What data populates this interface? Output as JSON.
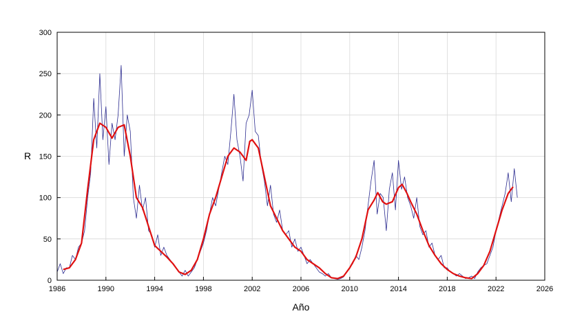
{
  "chart_data": {
    "type": "line",
    "xlabel": "Año",
    "ylabel": "R",
    "xlim": [
      1986,
      2026
    ],
    "ylim": [
      0,
      300
    ],
    "xticks": [
      1986,
      1990,
      1994,
      1998,
      2002,
      2006,
      2010,
      2014,
      2018,
      2022,
      2026
    ],
    "yticks": [
      0,
      50,
      100,
      150,
      200,
      250,
      300
    ],
    "grid": true,
    "series": [
      {
        "color": "#2b2b8f",
        "width": 0.8,
        "x": [
          1986,
          1986.25,
          1986.5,
          1986.75,
          1987,
          1987.25,
          1987.5,
          1987.75,
          1988,
          1988.25,
          1988.5,
          1988.75,
          1989,
          1989.25,
          1989.5,
          1989.75,
          1990,
          1990.25,
          1990.5,
          1990.75,
          1991,
          1991.25,
          1991.5,
          1991.75,
          1992,
          1992.25,
          1992.5,
          1992.75,
          1993,
          1993.25,
          1993.5,
          1993.75,
          1994,
          1994.25,
          1994.5,
          1994.75,
          1995,
          1995.25,
          1995.5,
          1995.75,
          1996,
          1996.25,
          1996.5,
          1996.75,
          1997,
          1997.25,
          1997.5,
          1997.75,
          1998,
          1998.25,
          1998.5,
          1998.75,
          1999,
          1999.25,
          1999.5,
          1999.75,
          2000,
          2000.25,
          2000.5,
          2000.75,
          2001,
          2001.25,
          2001.5,
          2001.75,
          2002,
          2002.25,
          2002.5,
          2002.75,
          2003,
          2003.25,
          2003.5,
          2003.75,
          2004,
          2004.25,
          2004.5,
          2004.75,
          2005,
          2005.25,
          2005.5,
          2005.75,
          2006,
          2006.25,
          2006.5,
          2006.75,
          2007,
          2007.25,
          2007.5,
          2007.75,
          2008,
          2008.25,
          2008.5,
          2008.75,
          2009,
          2009.25,
          2009.5,
          2009.75,
          2010,
          2010.25,
          2010.5,
          2010.75,
          2011,
          2011.25,
          2011.5,
          2011.75,
          2012,
          2012.25,
          2012.5,
          2012.75,
          2013,
          2013.25,
          2013.5,
          2013.75,
          2014,
          2014.25,
          2014.5,
          2014.75,
          2015,
          2015.25,
          2015.5,
          2015.75,
          2016,
          2016.25,
          2016.5,
          2016.75,
          2017,
          2017.25,
          2017.5,
          2017.75,
          2018,
          2018.25,
          2018.5,
          2018.75,
          2019,
          2019.25,
          2019.5,
          2019.75,
          2020,
          2020.25,
          2020.5,
          2020.75,
          2021,
          2021.25,
          2021.5,
          2021.75,
          2022,
          2022.25,
          2022.5,
          2022.75,
          2023,
          2023.25,
          2023.5,
          2023.75
        ],
        "values": [
          10,
          20,
          8,
          15,
          15,
          30,
          25,
          40,
          45,
          60,
          100,
          130,
          220,
          160,
          250,
          170,
          210,
          140,
          190,
          170,
          200,
          260,
          150,
          200,
          180,
          100,
          75,
          115,
          85,
          100,
          60,
          55,
          40,
          55,
          30,
          40,
          30,
          25,
          20,
          15,
          10,
          5,
          12,
          5,
          10,
          15,
          25,
          35,
          45,
          60,
          80,
          100,
          90,
          110,
          130,
          150,
          140,
          180,
          225,
          170,
          150,
          120,
          190,
          200,
          230,
          180,
          175,
          140,
          120,
          90,
          115,
          80,
          70,
          85,
          60,
          55,
          60,
          40,
          50,
          35,
          40,
          30,
          20,
          25,
          20,
          15,
          10,
          8,
          5,
          8,
          3,
          2,
          1,
          2,
          4,
          10,
          15,
          20,
          30,
          25,
          40,
          60,
          90,
          120,
          145,
          80,
          105,
          100,
          60,
          110,
          130,
          85,
          145,
          110,
          125,
          100,
          90,
          75,
          100,
          65,
          55,
          60,
          40,
          45,
          30,
          25,
          30,
          15,
          15,
          10,
          8,
          5,
          8,
          5,
          2,
          3,
          5,
          2,
          10,
          15,
          18,
          20,
          30,
          40,
          60,
          75,
          90,
          105,
          130,
          95,
          135,
          100
        ]
      },
      {
        "color": "#e01010",
        "width": 2.2,
        "x": [
          1986.5,
          1987,
          1987.5,
          1988,
          1988.5,
          1989,
          1989.5,
          1990,
          1990.5,
          1991,
          1991.5,
          1992,
          1992.5,
          1993,
          1993.5,
          1994,
          1994.5,
          1995,
          1995.5,
          1996,
          1996.5,
          1997,
          1997.5,
          1998,
          1998.5,
          1999,
          1999.5,
          2000,
          2000.5,
          2001,
          2001.5,
          2001.8,
          2002,
          2002.5,
          2003,
          2003.5,
          2004,
          2004.5,
          2005,
          2005.5,
          2006,
          2006.5,
          2007,
          2007.5,
          2008,
          2008.5,
          2009,
          2009.5,
          2010,
          2010.5,
          2011,
          2011.5,
          2012,
          2012.3,
          2012.7,
          2013,
          2013.5,
          2014,
          2014.3,
          2014.7,
          2015,
          2015.5,
          2016,
          2016.5,
          2017,
          2017.5,
          2018,
          2018.5,
          2019,
          2019.5,
          2020,
          2020.5,
          2021,
          2021.5,
          2022,
          2022.5,
          2023,
          2023.4
        ],
        "values": [
          13,
          15,
          25,
          45,
          110,
          170,
          190,
          185,
          172,
          185,
          188,
          150,
          100,
          88,
          65,
          42,
          35,
          28,
          20,
          10,
          7,
          12,
          25,
          50,
          80,
          100,
          125,
          150,
          160,
          155,
          145,
          168,
          170,
          160,
          125,
          90,
          75,
          60,
          50,
          40,
          35,
          25,
          20,
          15,
          8,
          3,
          2,
          5,
          15,
          28,
          50,
          85,
          97,
          106,
          95,
          92,
          95,
          112,
          116,
          105,
          95,
          80,
          60,
          42,
          30,
          20,
          13,
          8,
          5,
          3,
          2,
          8,
          18,
          35,
          60,
          85,
          105,
          113
        ]
      }
    ]
  }
}
